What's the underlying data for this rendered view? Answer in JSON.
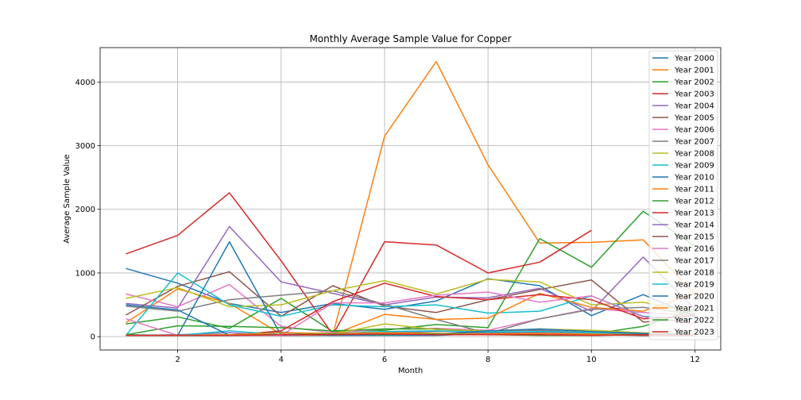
{
  "chart_data": {
    "type": "line",
    "title": "Monthly Average Sample Value for Copper",
    "xlabel": "Month",
    "ylabel": "Average Sample Value",
    "xlim": [
      0.5,
      12.5
    ],
    "ylim": [
      -210,
      4540
    ],
    "xticks": [
      2,
      4,
      6,
      8,
      10,
      12
    ],
    "yticks": [
      0,
      1000,
      2000,
      3000,
      4000
    ],
    "grid": true,
    "legend_position": "upper right",
    "x": [
      1,
      2,
      3,
      4,
      5,
      6,
      7,
      8,
      9,
      10,
      11,
      12
    ],
    "series": [
      {
        "name": "Year 2000",
        "color": "#1f77b4",
        "values": [
          1070,
          840,
          520,
          380,
          520,
          430,
          560,
          910,
          800,
          330,
          660,
          320
        ]
      },
      {
        "name": "Year 2001",
        "color": "#ff7f0e",
        "values": [
          220,
          750,
          520,
          40,
          30,
          3150,
          4320,
          2700,
          1470,
          1480,
          1520,
          660
        ]
      },
      {
        "name": "Year 2002",
        "color": "#2ca02c",
        "values": [
          200,
          310,
          130,
          600,
          80,
          100,
          190,
          140,
          1540,
          1090,
          1970,
          1420
        ]
      },
      {
        "name": "Year 2003",
        "color": "#d62728",
        "values": [
          1300,
          1590,
          2260,
          1190,
          30,
          1490,
          1440,
          1000,
          1170,
          1670,
          null,
          null
        ]
      },
      {
        "name": "Year 2004",
        "color": "#9467bd",
        "values": [
          520,
          450,
          1730,
          860,
          680,
          500,
          620,
          610,
          760,
          400,
          1250,
          430
        ]
      },
      {
        "name": "Year 2005",
        "color": "#8c564b",
        "values": [
          340,
          790,
          1020,
          320,
          800,
          480,
          380,
          580,
          740,
          890,
          230,
          280
        ]
      },
      {
        "name": "Year 2006",
        "color": "#e377c2",
        "values": [
          670,
          470,
          820,
          160,
          60,
          120,
          130,
          100,
          280,
          440,
          380,
          330
        ]
      },
      {
        "name": "Year 2007",
        "color": "#7f7f7f",
        "values": [
          480,
          400,
          580,
          650,
          720,
          510,
          270,
          50,
          280,
          430,
          460,
          350
        ]
      },
      {
        "name": "Year 2008",
        "color": "#bcbd22",
        "values": [
          600,
          770,
          470,
          500,
          720,
          880,
          670,
          900,
          860,
          500,
          540,
          380
        ]
      },
      {
        "name": "Year 2009",
        "color": "#17becf",
        "values": [
          20,
          1000,
          500,
          320,
          500,
          470,
          500,
          370,
          400,
          640,
          320,
          280
        ]
      },
      {
        "name": "Year 2010",
        "color": "#1f77b4",
        "values": [
          30,
          20,
          1490,
          20,
          20,
          20,
          20,
          50,
          80,
          60,
          20,
          40
        ]
      },
      {
        "name": "Year 2011",
        "color": "#ff7f0e",
        "values": [
          20,
          20,
          20,
          20,
          30,
          350,
          270,
          290,
          680,
          460,
          400,
          680
        ]
      },
      {
        "name": "Year 2012",
        "color": "#2ca02c",
        "values": [
          30,
          170,
          160,
          140,
          90,
          120,
          120,
          60,
          60,
          40,
          160,
          430
        ]
      },
      {
        "name": "Year 2013",
        "color": "#d62728",
        "values": [
          20,
          20,
          20,
          90,
          550,
          840,
          630,
          580,
          660,
          580,
          280,
          330
        ]
      },
      {
        "name": "Year 2014",
        "color": "#9467bd",
        "values": [
          20,
          30,
          60,
          20,
          40,
          80,
          40,
          60,
          60,
          40,
          20,
          20
        ]
      },
      {
        "name": "Year 2015",
        "color": "#8c564b",
        "values": [
          20,
          20,
          20,
          30,
          30,
          40,
          40,
          50,
          50,
          30,
          20,
          20
        ]
      },
      {
        "name": "Year 2016",
        "color": "#e377c2",
        "values": [
          280,
          20,
          20,
          20,
          530,
          530,
          650,
          700,
          540,
          640,
          310,
          200
        ]
      },
      {
        "name": "Year 2017",
        "color": "#7f7f7f",
        "values": [
          20,
          20,
          20,
          30,
          40,
          60,
          80,
          90,
          100,
          60,
          40,
          30
        ]
      },
      {
        "name": "Year 2018",
        "color": "#bcbd22",
        "values": [
          20,
          20,
          30,
          30,
          40,
          200,
          110,
          90,
          120,
          100,
          60,
          40
        ]
      },
      {
        "name": "Year 2019",
        "color": "#17becf",
        "values": [
          20,
          20,
          90,
          30,
          50,
          80,
          90,
          70,
          80,
          60,
          40,
          30
        ]
      },
      {
        "name": "Year 2020",
        "color": "#1f77b4",
        "values": [
          500,
          420,
          20,
          70,
          20,
          30,
          40,
          90,
          120,
          80,
          50,
          30
        ]
      },
      {
        "name": "Year 2021",
        "color": "#ff7f0e",
        "values": [
          20,
          20,
          30,
          60,
          50,
          60,
          50,
          40,
          50,
          40,
          30,
          20
        ]
      },
      {
        "name": "Year 2022",
        "color": "#2ca02c",
        "values": [
          20,
          20,
          20,
          30,
          40,
          30,
          40,
          30,
          20,
          20,
          30,
          20
        ]
      },
      {
        "name": "Year 2023",
        "color": "#d62728",
        "values": [
          20,
          20,
          20,
          30,
          30,
          40,
          30,
          30,
          30,
          20,
          30,
          20
        ]
      }
    ]
  }
}
